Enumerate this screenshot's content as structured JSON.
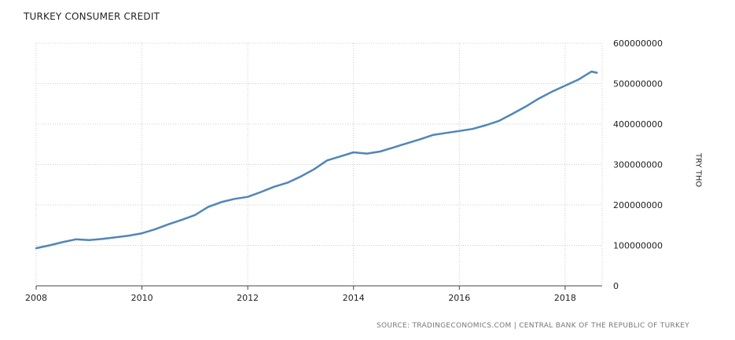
{
  "header": {
    "title": "TURKEY CONSUMER CREDIT"
  },
  "footer": {
    "source": "SOURCE: TRADINGECONOMICS.COM | CENTRAL BANK OF THE REPUBLIC OF TURKEY"
  },
  "colors": {
    "line": "#4f86b9",
    "grid": "#cccccc",
    "text": "#222222"
  },
  "chart_data": {
    "type": "line",
    "title": "TURKEY CONSUMER CREDIT",
    "xlabel": "",
    "ylabel": "TRY THO",
    "xlim": [
      2008,
      2018.7
    ],
    "ylim": [
      0,
      600000000
    ],
    "x_ticks": [
      2008,
      2010,
      2012,
      2014,
      2016,
      2018
    ],
    "x_tick_labels": [
      "2008",
      "2010",
      "2012",
      "2014",
      "2016",
      "2018"
    ],
    "y_ticks": [
      0,
      100000000,
      200000000,
      300000000,
      400000000,
      500000000,
      600000000
    ],
    "y_tick_labels": [
      "0",
      "100000000",
      "200000000",
      "300000000",
      "400000000",
      "500000000",
      "600000000"
    ],
    "grid": true,
    "series": [
      {
        "x": [
          2008.0,
          2008.25,
          2008.5,
          2008.75,
          2009.0,
          2009.25,
          2009.5,
          2009.75,
          2010.0,
          2010.25,
          2010.5,
          2010.75,
          2011.0,
          2011.25,
          2011.5,
          2011.75,
          2012.0,
          2012.25,
          2012.5,
          2012.75,
          2013.0,
          2013.25,
          2013.5,
          2013.75,
          2014.0,
          2014.25,
          2014.5,
          2014.75,
          2015.0,
          2015.25,
          2015.5,
          2015.75,
          2016.0,
          2016.25,
          2016.5,
          2016.75,
          2017.0,
          2017.25,
          2017.5,
          2017.75,
          2018.0,
          2018.25,
          2018.5,
          2018.6
        ],
        "values": [
          93000000,
          100000000,
          108000000,
          115000000,
          113000000,
          116000000,
          120000000,
          124000000,
          130000000,
          140000000,
          152000000,
          163000000,
          175000000,
          195000000,
          207000000,
          215000000,
          220000000,
          232000000,
          245000000,
          255000000,
          270000000,
          288000000,
          310000000,
          320000000,
          330000000,
          327000000,
          332000000,
          342000000,
          352000000,
          362000000,
          373000000,
          378000000,
          383000000,
          388000000,
          397000000,
          408000000,
          425000000,
          443000000,
          463000000,
          480000000,
          495000000,
          510000000,
          530000000,
          527000000
        ]
      }
    ]
  }
}
